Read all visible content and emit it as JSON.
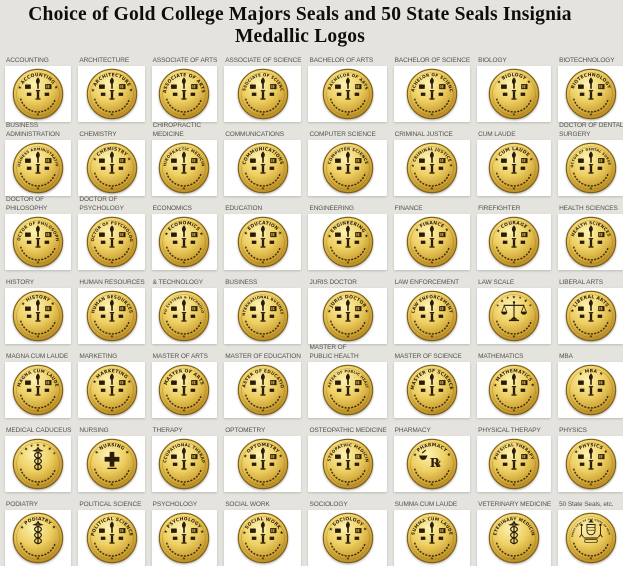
{
  "title": "Choice of Gold College Majors Seals and 50 State Seals Insignia Medallic Logos",
  "colors": {
    "page_bg": "#e4e3de",
    "card_bg": "#ffffff",
    "title_color": "#0e0d0b",
    "label_color": "#55524c",
    "gold_light": "#fdf2b2",
    "gold_mid": "#eecf62",
    "gold_deep": "#c79b2e",
    "gold_rim": "#7c5d15",
    "engrave": "#2a1c06"
  },
  "seals": [
    {
      "label": "ACCOUNTING",
      "seal_text": "ACCOUNTING",
      "icon": "torch"
    },
    {
      "label": "ARCHITECTURE",
      "seal_text": "ARCHITECTURE",
      "icon": "torch"
    },
    {
      "label": "ASSOCIATE OF ARTS",
      "seal_text": "ASSOCIATE OF ARTS",
      "icon": "torch"
    },
    {
      "label": "ASSOCIATE OF SCIENCE",
      "seal_text": "ASSOCIATE OF SCIENCE",
      "icon": "torch"
    },
    {
      "label": "BACHELOR OF ARTS",
      "seal_text": "BACHELOR OF ARTS",
      "icon": "torch"
    },
    {
      "label": "BACHELOR OF SCIENCE",
      "seal_text": "BACHELOR OF SCIENCE",
      "icon": "torch"
    },
    {
      "label": "BIOLOGY",
      "seal_text": "BIOLOGY",
      "icon": "torch"
    },
    {
      "label": "BIOTECHNOLOGY",
      "seal_text": "BIOTECHNOLOGY",
      "icon": "torch"
    },
    {
      "label": "BUSINESS\nADMINISTRATION",
      "seal_text": "BUSINESS ADMINISTRATION",
      "icon": "torch"
    },
    {
      "label": "CHEMISTRY",
      "seal_text": "CHEMISTRY",
      "icon": "torch"
    },
    {
      "label": "CHIROPRACTIC\nMEDICINE",
      "seal_text": "CHIROPRACTIC MEDICINE",
      "icon": "torch"
    },
    {
      "label": "COMMUNICATIONS",
      "seal_text": "COMMUNICATIONS",
      "icon": "torch"
    },
    {
      "label": "COMPUTER SCIENCE",
      "seal_text": "COMPUTER SCIENCE",
      "icon": "torch"
    },
    {
      "label": "CRIMINAL JUSTICE",
      "seal_text": "CRIMINAL JUSTICE",
      "icon": "torch"
    },
    {
      "label": "CUM LAUDE",
      "seal_text": "CUM LAUDE",
      "icon": "torch"
    },
    {
      "label": "DOCTOR OF DENTAL\nSURGERY",
      "seal_text": "DOCTOR OF DENTAL SURGERY",
      "icon": "torch"
    },
    {
      "label": "DOCTOR OF\nPHILOSOPHY",
      "seal_text": "DOCTOR OF PHILOSOPHY",
      "icon": "torch"
    },
    {
      "label": "DOCTOR OF\nPSYCHOLOGY",
      "seal_text": "DOCTOR OF PSYCHOLOGY",
      "icon": "torch"
    },
    {
      "label": "ECONOMICS",
      "seal_text": "ECONOMICS",
      "icon": "torch"
    },
    {
      "label": "EDUCATION",
      "seal_text": "EDUCATION",
      "icon": "torch"
    },
    {
      "label": "ENGINEERING",
      "seal_text": "ENGINEERING",
      "icon": "torch"
    },
    {
      "label": "FINANCE",
      "seal_text": "FINANCE",
      "icon": "torch"
    },
    {
      "label": "FIREFIGHTER",
      "seal_text": "COURAGE",
      "icon": "torch"
    },
    {
      "label": "HEALTH SCIENCES",
      "seal_text": "HEALTH SCIENCES",
      "icon": "torch"
    },
    {
      "label": "HISTORY",
      "seal_text": "HISTORY",
      "icon": "torch"
    },
    {
      "label": "HUMAN RESOURCES",
      "seal_text": "HUMAN RESOURCES",
      "icon": "torch"
    },
    {
      "label": "& TECHNOLOGY",
      "seal_text": "INFO SYSTEMS & TECHNOLOGY",
      "icon": "torch"
    },
    {
      "label": "BUSINESS",
      "seal_text": "INTERNATIONAL BUSINESS",
      "icon": "torch"
    },
    {
      "label": "JURIS DOCTOR",
      "seal_text": "JURIS DOCTOR",
      "icon": "torch"
    },
    {
      "label": "LAW ENFORCEMENT",
      "seal_text": "LAW ENFORCEMENT",
      "icon": "torch"
    },
    {
      "label": "LAW SCALE",
      "seal_text": "",
      "icon": "scale"
    },
    {
      "label": "LIBERAL ARTS",
      "seal_text": "LIBERAL ARTS",
      "icon": "torch"
    },
    {
      "label": "MAGNA CUM LAUDE",
      "seal_text": "MAGNA CUM LAUDE",
      "icon": "torch"
    },
    {
      "label": "MARKETING",
      "seal_text": "MARKETING",
      "icon": "torch"
    },
    {
      "label": "MASTER OF ARTS",
      "seal_text": "MASTER OF ARTS",
      "icon": "torch"
    },
    {
      "label": "MASTER OF EDUCATION",
      "seal_text": "MASTER OF EDUCATION",
      "icon": "torch"
    },
    {
      "label": "MASTER OF\nPUBLIC HEALTH",
      "seal_text": "MASTER OF PUBLIC HEALTH",
      "icon": "torch"
    },
    {
      "label": "MASTER OF SCIENCE",
      "seal_text": "MASTER OF SCIENCE",
      "icon": "torch"
    },
    {
      "label": "MATHEMATICS",
      "seal_text": "MATHEMATICS",
      "icon": "torch"
    },
    {
      "label": "MBA",
      "seal_text": "MBA",
      "icon": "torch"
    },
    {
      "label": "MEDICAL CADUCEUS",
      "seal_text": "",
      "icon": "caduceus"
    },
    {
      "label": "NURSING",
      "seal_text": "NURSING",
      "icon": "cross"
    },
    {
      "label": "THERAPY",
      "seal_text": "OCCUPATIONAL THERAPY",
      "icon": "torch"
    },
    {
      "label": "OPTOMETRY",
      "seal_text": "OPTOMETRY",
      "icon": "torch"
    },
    {
      "label": "OSTEOPATHIC MEDICINE",
      "seal_text": "OSTEOPATHIC MEDICINE",
      "icon": "torch"
    },
    {
      "label": "PHARMACY",
      "seal_text": "PHARMACY",
      "icon": "rx"
    },
    {
      "label": "PHYSICAL THERAPY",
      "seal_text": "PHYSICAL THERAPY",
      "icon": "torch"
    },
    {
      "label": "PHYSICS",
      "seal_text": "PHYSICS",
      "icon": "torch"
    },
    {
      "label": "PODIATRY",
      "seal_text": "PODIATRY",
      "icon": "caduceus"
    },
    {
      "label": "POLITICAL SCIENCE",
      "seal_text": "POLITICAL SCIENCE",
      "icon": "torch"
    },
    {
      "label": "PSYCHOLOGY",
      "seal_text": "PSYCHOLOGY",
      "icon": "torch"
    },
    {
      "label": "SOCIAL WORK",
      "seal_text": "SOCIAL WORK",
      "icon": "torch"
    },
    {
      "label": "SOCIOLOGY",
      "seal_text": "SOCIOLOGY",
      "icon": "torch"
    },
    {
      "label": "SUMMA CUM LAUDE",
      "seal_text": "SUMMA CUM LAUDE",
      "icon": "torch"
    },
    {
      "label": "VETERINARY MEDICINE",
      "seal_text": "VETERINARY MEDICINE",
      "icon": "caduceus"
    },
    {
      "label": "50 State Seals, etc.",
      "seal_text": "THE GREAT SEAL OF THE STATE OF NEW YORK",
      "icon": "state"
    }
  ]
}
